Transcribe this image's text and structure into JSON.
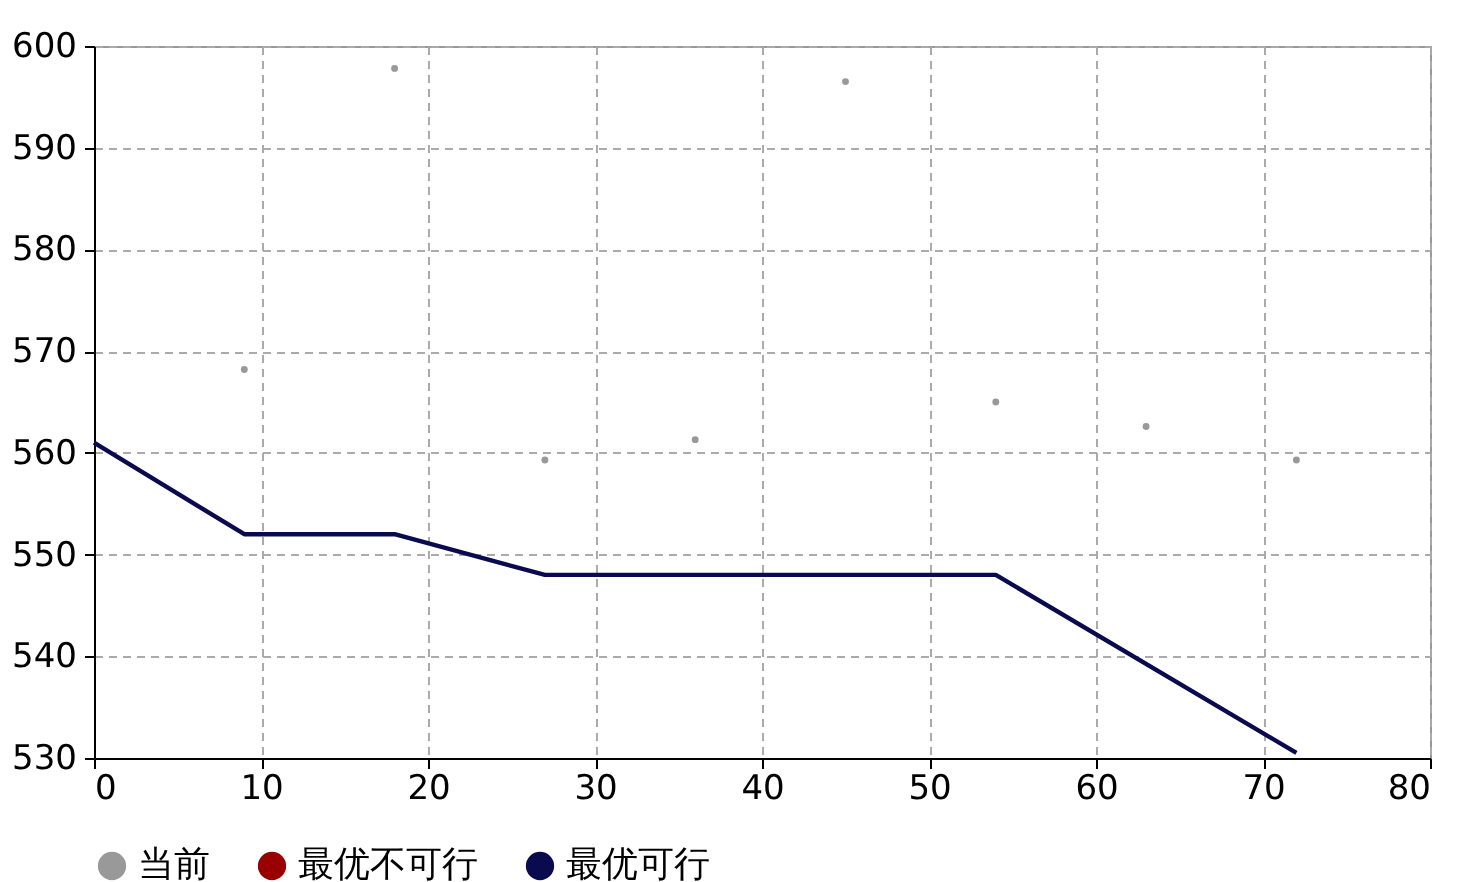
{
  "chart_data": {
    "type": "scatter",
    "xlim": [
      0,
      80
    ],
    "xticks": [
      0,
      10,
      20,
      30,
      40,
      50,
      60,
      70,
      80
    ],
    "ylim": [
      530,
      600
    ],
    "yticks": [
      530,
      540,
      550,
      560,
      570,
      580,
      590,
      600
    ],
    "grid": true,
    "legend": "bottom left",
    "series": [
      {
        "name": "当前",
        "color": "#999999",
        "marker": "circle",
        "x": [
          9,
          18,
          27,
          36,
          45,
          54,
          63,
          72
        ],
        "values": [
          568.2,
          597.8,
          559.3,
          561.3,
          596.5,
          565,
          562.6,
          559.3
        ]
      },
      {
        "name": "最优不可行",
        "color": "#990000"
      },
      {
        "name": "最优可行",
        "color": "#0a0a4f",
        "type": "line",
        "marker": "none",
        "x": [
          0,
          9,
          18,
          27,
          54,
          72
        ],
        "values": [
          561,
          552,
          552,
          548,
          548,
          530.5
        ]
      }
    ]
  }
}
